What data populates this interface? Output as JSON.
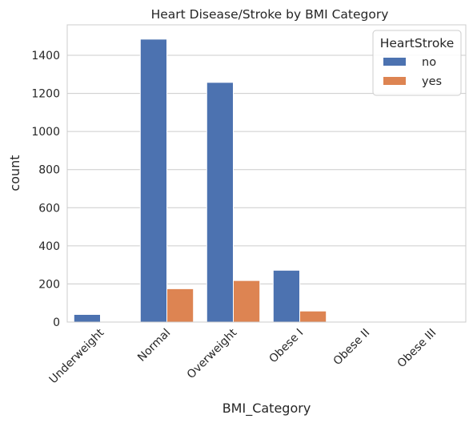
{
  "chart_data": {
    "type": "bar",
    "title": "Heart Disease/Stroke by BMI Category",
    "xlabel": "BMI_Category",
    "ylabel": "count",
    "categories": [
      "Underweight",
      "Normal",
      "Overweight",
      "Obese I",
      "Obese II",
      "Obese III"
    ],
    "series": [
      {
        "name": "no",
        "color": "#4c72b0",
        "values": [
          40,
          1485,
          1258,
          272,
          0,
          0
        ]
      },
      {
        "name": "yes",
        "color": "#dd8452",
        "values": [
          2,
          175,
          218,
          58,
          0,
          0
        ]
      }
    ],
    "ylim": [
      0,
      1560
    ],
    "yticks": [
      0,
      200,
      400,
      600,
      800,
      1000,
      1200,
      1400
    ],
    "grid": true,
    "legend": {
      "title": "HeartStroke",
      "placement": "top-right"
    }
  }
}
